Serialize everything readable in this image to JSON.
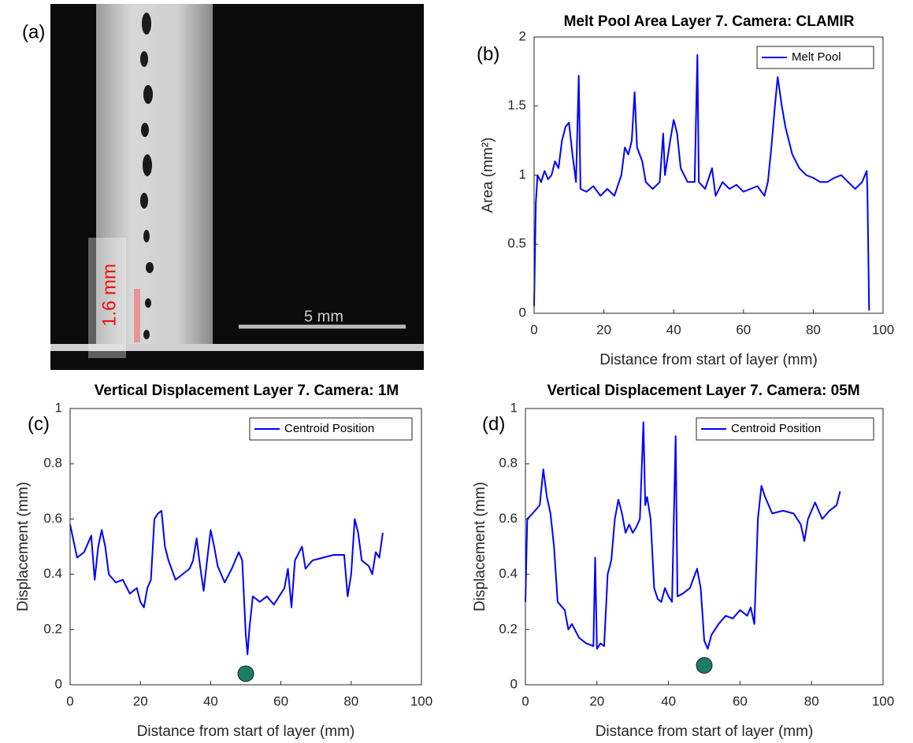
{
  "panel_a": {
    "label": "(a)",
    "height_label": "1.6 mm",
    "scale_label": "5 mm"
  },
  "chart_data": [
    {
      "type": "line",
      "panel_label": "(b)",
      "title": "Melt Pool Area Layer 7. Camera: CLAMIR",
      "x_label": "Distance from start of layer (mm)",
      "y_label": "Area (mm²)",
      "xlim": [
        0,
        100
      ],
      "xticks": [
        0,
        20,
        40,
        60,
        80,
        100
      ],
      "ylim": [
        0,
        2
      ],
      "yticks": [
        0,
        0.5,
        1,
        1.5,
        2
      ],
      "legend": "upper right",
      "x": [
        0,
        0.5,
        1,
        2,
        3,
        4,
        5,
        6,
        7,
        8,
        9,
        10,
        11,
        12,
        12.8,
        13.3,
        15,
        17,
        19,
        21,
        23,
        25,
        26,
        27,
        28,
        28.8,
        29.5,
        31,
        32,
        34,
        36,
        37,
        37.5,
        39,
        40,
        41,
        42,
        44,
        46,
        46.8,
        47.2,
        49,
        51,
        52,
        54,
        56,
        58,
        60,
        62,
        64,
        66,
        67,
        68,
        69,
        69.8,
        71,
        72,
        74,
        76,
        78,
        80,
        82,
        84,
        86,
        88,
        90,
        92,
        94,
        95.3,
        95.5,
        96
      ],
      "series": [
        {
          "name": "Melt Pool",
          "color": "#0000ff",
          "values": [
            0.05,
            0.8,
            1.0,
            0.95,
            1.03,
            0.97,
            1.0,
            1.1,
            1.05,
            1.25,
            1.35,
            1.38,
            1.15,
            0.95,
            1.72,
            0.9,
            0.88,
            0.92,
            0.85,
            0.9,
            0.85,
            1.0,
            1.2,
            1.15,
            1.25,
            1.6,
            1.2,
            1.1,
            0.95,
            0.9,
            0.95,
            1.3,
            1.0,
            1.25,
            1.4,
            1.3,
            1.05,
            0.95,
            0.95,
            1.87,
            0.95,
            0.9,
            1.05,
            0.85,
            0.95,
            0.9,
            0.93,
            0.88,
            0.9,
            0.92,
            0.85,
            0.95,
            1.2,
            1.5,
            1.71,
            1.5,
            1.35,
            1.15,
            1.05,
            1.0,
            0.98,
            0.95,
            0.95,
            0.98,
            1.0,
            0.95,
            0.9,
            0.95,
            1.03,
            0.9,
            0.02
          ]
        }
      ]
    },
    {
      "type": "line",
      "panel_label": "(c)",
      "title": "Vertical Displacement Layer 7. Camera: 1M",
      "x_label": "Distance from start of layer (mm)",
      "y_label": "Displacement (mm)",
      "xlim": [
        0,
        100
      ],
      "xticks": [
        0,
        20,
        40,
        60,
        80,
        100
      ],
      "ylim": [
        0,
        1
      ],
      "yticks": [
        0,
        0.2,
        0.4,
        0.6,
        0.8,
        1
      ],
      "legend": "upper right",
      "x": [
        0,
        2,
        4,
        6,
        7,
        8,
        9,
        10,
        11,
        13,
        15,
        17,
        19,
        20,
        21,
        22,
        23,
        24,
        25,
        26,
        27,
        28,
        30,
        32,
        34,
        35,
        36,
        37,
        38,
        39,
        40,
        41,
        42,
        44,
        46,
        48,
        49,
        50,
        50.5,
        51,
        52,
        54,
        56,
        58,
        60,
        61,
        62,
        63,
        64,
        66,
        67,
        69,
        72,
        75,
        78,
        79,
        80,
        81,
        82,
        83,
        85,
        86,
        87,
        88,
        89
      ],
      "series": [
        {
          "name": "Centroid Position",
          "color": "#0000ff",
          "values": [
            0.58,
            0.46,
            0.48,
            0.54,
            0.38,
            0.5,
            0.56,
            0.5,
            0.4,
            0.37,
            0.38,
            0.33,
            0.35,
            0.3,
            0.28,
            0.35,
            0.38,
            0.6,
            0.62,
            0.63,
            0.5,
            0.45,
            0.38,
            0.4,
            0.42,
            0.45,
            0.53,
            0.43,
            0.34,
            0.45,
            0.56,
            0.5,
            0.43,
            0.37,
            0.42,
            0.48,
            0.45,
            0.18,
            0.11,
            0.2,
            0.32,
            0.3,
            0.32,
            0.29,
            0.33,
            0.35,
            0.42,
            0.28,
            0.45,
            0.5,
            0.42,
            0.45,
            0.46,
            0.47,
            0.47,
            0.32,
            0.4,
            0.6,
            0.55,
            0.45,
            0.43,
            0.4,
            0.48,
            0.46,
            0.55
          ]
        }
      ],
      "marker": {
        "x": 50,
        "y": 0.04,
        "color": "#1b7d62"
      }
    },
    {
      "type": "line",
      "panel_label": "(d)",
      "title": "Vertical Displacement Layer 7. Camera: 05M",
      "x_label": "Distance from start of layer (mm)",
      "y_label": "Displacement (mm)",
      "xlim": [
        0,
        100
      ],
      "xticks": [
        0,
        20,
        40,
        60,
        80,
        100
      ],
      "ylim": [
        0,
        1
      ],
      "yticks": [
        0,
        0.2,
        0.4,
        0.6,
        0.8,
        1
      ],
      "legend": "upper right",
      "x": [
        0,
        0.5,
        2,
        4,
        5,
        6,
        7,
        8,
        9,
        11,
        12,
        13,
        15,
        17,
        19,
        19.5,
        20,
        21,
        22,
        23,
        24,
        25,
        26,
        27,
        28,
        29,
        30,
        31,
        32,
        33,
        33.5,
        34,
        35,
        36,
        37,
        38,
        39,
        40,
        41,
        42,
        42.5,
        44,
        46,
        48,
        49,
        50,
        51,
        52,
        54,
        56,
        58,
        60,
        62,
        63,
        64,
        65,
        66,
        67,
        69,
        72,
        75,
        77,
        78,
        79,
        81,
        83,
        85,
        87,
        88
      ],
      "series": [
        {
          "name": "Centroid Position",
          "color": "#0000ff",
          "values": [
            0.3,
            0.6,
            0.62,
            0.65,
            0.78,
            0.68,
            0.62,
            0.5,
            0.3,
            0.27,
            0.2,
            0.22,
            0.17,
            0.15,
            0.14,
            0.46,
            0.13,
            0.15,
            0.14,
            0.4,
            0.45,
            0.6,
            0.67,
            0.62,
            0.55,
            0.58,
            0.55,
            0.57,
            0.6,
            0.95,
            0.65,
            0.68,
            0.6,
            0.35,
            0.31,
            0.3,
            0.35,
            0.32,
            0.3,
            0.9,
            0.32,
            0.33,
            0.35,
            0.42,
            0.35,
            0.16,
            0.13,
            0.18,
            0.22,
            0.25,
            0.24,
            0.27,
            0.25,
            0.28,
            0.22,
            0.6,
            0.72,
            0.68,
            0.62,
            0.63,
            0.62,
            0.58,
            0.52,
            0.6,
            0.66,
            0.6,
            0.63,
            0.65,
            0.7
          ]
        }
      ],
      "marker": {
        "x": 50,
        "y": 0.07,
        "color": "#1b7d62"
      }
    }
  ]
}
